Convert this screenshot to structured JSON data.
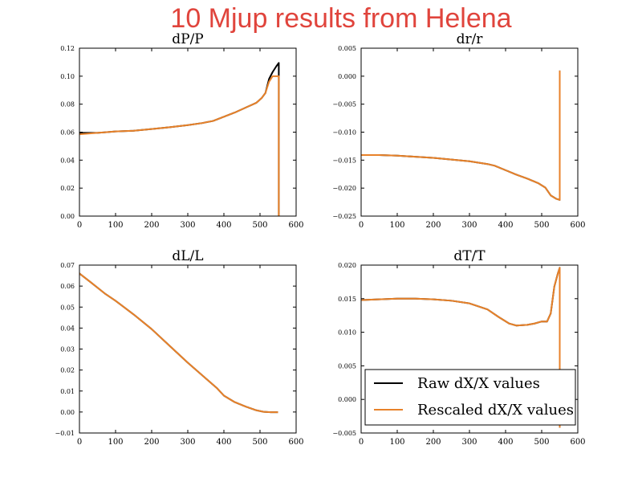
{
  "title": "10 Mjup results from Helena",
  "colors": {
    "raw": "#000000",
    "rescaled": "#e8822a",
    "title": "#e0443c"
  },
  "legend": {
    "location": "lower-right of dT/T panel",
    "entries": [
      {
        "label": "Raw dX/X values",
        "color": "#000000"
      },
      {
        "label": "Rescaled dX/X values",
        "color": "#e8822a"
      }
    ]
  },
  "chart_data": [
    {
      "type": "line",
      "title": "dP/P",
      "xlim": [
        0,
        600
      ],
      "ylim": [
        0.0,
        0.12
      ],
      "xticks": [
        "0",
        "100",
        "200",
        "300",
        "400",
        "500",
        "600"
      ],
      "yticks": [
        "0.00",
        "0.02",
        "0.04",
        "0.06",
        "0.08",
        "0.10",
        "0.12"
      ],
      "series": [
        {
          "name": "Raw dX/X values",
          "color": "#000000",
          "x": [
            0,
            50,
            100,
            150,
            200,
            250,
            300,
            340,
            370,
            400,
            430,
            460,
            490,
            505,
            515,
            525,
            535,
            545,
            552,
            552
          ],
          "y": [
            0.0595,
            0.0595,
            0.0605,
            0.061,
            0.0622,
            0.0635,
            0.065,
            0.0665,
            0.068,
            0.071,
            0.074,
            0.0775,
            0.081,
            0.0845,
            0.088,
            0.098,
            0.103,
            0.107,
            0.1095,
            0.0
          ]
        },
        {
          "name": "Rescaled dX/X values",
          "color": "#e8822a",
          "x": [
            0,
            50,
            100,
            150,
            200,
            250,
            300,
            340,
            370,
            400,
            430,
            460,
            490,
            505,
            515,
            525,
            535,
            545,
            552,
            552
          ],
          "y": [
            0.0585,
            0.0595,
            0.0605,
            0.061,
            0.0622,
            0.0635,
            0.065,
            0.0665,
            0.068,
            0.071,
            0.074,
            0.0775,
            0.081,
            0.0845,
            0.088,
            0.096,
            0.1,
            0.1,
            0.1,
            0.0
          ]
        }
      ]
    },
    {
      "type": "line",
      "title": "dr/r",
      "xlim": [
        0,
        600
      ],
      "ylim": [
        -0.025,
        0.005
      ],
      "xticks": [
        "0",
        "100",
        "200",
        "300",
        "400",
        "500",
        "600"
      ],
      "yticks": [
        "−0.025",
        "−0.020",
        "−0.015",
        "−0.010",
        "−0.005",
        "0.000",
        "0.005"
      ],
      "series": [
        {
          "name": "Raw dX/X values",
          "color": "#000000",
          "x": [
            0,
            50,
            100,
            150,
            200,
            250,
            300,
            350,
            370,
            400,
            430,
            460,
            490,
            510,
            525,
            540,
            550,
            550
          ],
          "y": [
            -0.0141,
            -0.0141,
            -0.0142,
            -0.0144,
            -0.0146,
            -0.0149,
            -0.0152,
            -0.0157,
            -0.016,
            -0.0168,
            -0.0176,
            -0.0183,
            -0.0191,
            -0.0199,
            -0.0213,
            -0.0219,
            -0.0221,
            0.001
          ]
        },
        {
          "name": "Rescaled dX/X values",
          "color": "#e8822a",
          "x": [
            0,
            50,
            100,
            150,
            200,
            250,
            300,
            350,
            370,
            400,
            430,
            460,
            490,
            510,
            525,
            540,
            550,
            550
          ],
          "y": [
            -0.0141,
            -0.0141,
            -0.0142,
            -0.0144,
            -0.0146,
            -0.0149,
            -0.0152,
            -0.0157,
            -0.016,
            -0.0168,
            -0.0176,
            -0.0183,
            -0.0191,
            -0.0199,
            -0.0213,
            -0.0219,
            -0.0221,
            0.001
          ]
        }
      ]
    },
    {
      "type": "line",
      "title": "dL/L",
      "xlim": [
        0,
        600
      ],
      "ylim": [
        -0.01,
        0.07
      ],
      "xticks": [
        "0",
        "100",
        "200",
        "300",
        "400",
        "500",
        "600"
      ],
      "yticks": [
        "−0.01",
        "0.00",
        "0.01",
        "0.02",
        "0.03",
        "0.04",
        "0.05",
        "0.06",
        "0.07"
      ],
      "series": [
        {
          "name": "Raw dX/X values",
          "color": "#000000",
          "x": [
            0,
            30,
            70,
            100,
            150,
            200,
            250,
            300,
            350,
            380,
            400,
            430,
            460,
            490,
            510,
            530,
            550
          ],
          "y": [
            0.066,
            0.062,
            0.0565,
            0.053,
            0.0465,
            0.0395,
            0.0315,
            0.0235,
            0.016,
            0.0115,
            0.0078,
            0.0047,
            0.0026,
            0.0008,
            0.0001,
            -0.0001,
            -0.0001
          ]
        },
        {
          "name": "Rescaled dX/X values",
          "color": "#e8822a",
          "x": [
            0,
            30,
            70,
            100,
            150,
            200,
            250,
            300,
            350,
            380,
            400,
            430,
            460,
            490,
            510,
            530,
            550
          ],
          "y": [
            0.066,
            0.062,
            0.0565,
            0.053,
            0.0465,
            0.0395,
            0.0315,
            0.0235,
            0.016,
            0.0115,
            0.0078,
            0.0047,
            0.0026,
            0.0008,
            0.0001,
            -0.0001,
            -0.0001
          ]
        }
      ]
    },
    {
      "type": "line",
      "title": "dT/T",
      "xlim": [
        0,
        600
      ],
      "ylim": [
        -0.005,
        0.02
      ],
      "xticks": [
        "0",
        "100",
        "200",
        "300",
        "400",
        "500",
        "600"
      ],
      "yticks": [
        "−0.005",
        "0.000",
        "0.005",
        "0.010",
        "0.015",
        "0.020"
      ],
      "series": [
        {
          "name": "Raw dX/X values",
          "color": "#000000",
          "x": [
            0,
            50,
            100,
            150,
            200,
            250,
            300,
            350,
            380,
            410,
            430,
            460,
            480,
            500,
            515,
            525,
            535,
            545,
            550,
            550
          ],
          "y": [
            0.0148,
            0.0149,
            0.015,
            0.015,
            0.0149,
            0.0147,
            0.0143,
            0.0134,
            0.0123,
            0.0113,
            0.011,
            0.0111,
            0.0113,
            0.0116,
            0.0116,
            0.0128,
            0.0168,
            0.0188,
            0.0196,
            -0.0042
          ]
        },
        {
          "name": "Rescaled dX/X values",
          "color": "#e8822a",
          "x": [
            0,
            50,
            100,
            150,
            200,
            250,
            300,
            350,
            380,
            410,
            430,
            460,
            480,
            500,
            515,
            525,
            535,
            545,
            550,
            550
          ],
          "y": [
            0.0148,
            0.0149,
            0.015,
            0.015,
            0.0149,
            0.0147,
            0.0143,
            0.0134,
            0.0123,
            0.0113,
            0.011,
            0.0111,
            0.0113,
            0.0116,
            0.0116,
            0.0128,
            0.0168,
            0.0188,
            0.0196,
            -0.0042
          ]
        }
      ]
    }
  ]
}
